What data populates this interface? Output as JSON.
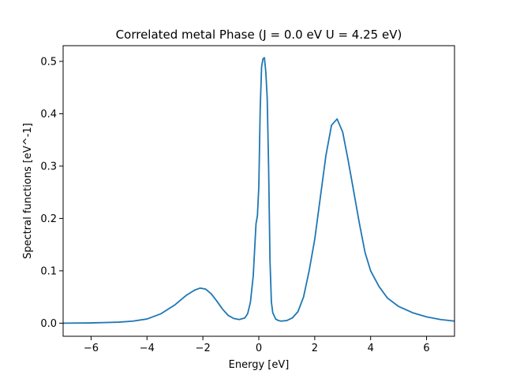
{
  "chart_data": {
    "type": "line",
    "title": "Correlated metal Phase (J = 0.0 eV U = 4.25 eV)",
    "xlabel": "Energy [eV]",
    "ylabel": "Spectral functions [eV^-1]",
    "xlim": [
      -7,
      7
    ],
    "ylim": [
      -0.025,
      0.53
    ],
    "xticks": [
      -6,
      -4,
      -2,
      0,
      2,
      4,
      6
    ],
    "xtick_labels": [
      "−6",
      "−4",
      "−2",
      "0",
      "2",
      "4",
      "6"
    ],
    "yticks": [
      0.0,
      0.1,
      0.2,
      0.3,
      0.4,
      0.5
    ],
    "ytick_labels": [
      "0.0",
      "0.1",
      "0.2",
      "0.3",
      "0.4",
      "0.5"
    ],
    "grid": false,
    "series": [
      {
        "color": "#1f77b4",
        "x": [
          -7.0,
          -6.0,
          -5.0,
          -4.5,
          -4.0,
          -3.5,
          -3.0,
          -2.6,
          -2.3,
          -2.1,
          -1.9,
          -1.7,
          -1.5,
          -1.3,
          -1.1,
          -0.9,
          -0.7,
          -0.5,
          -0.4,
          -0.3,
          -0.2,
          -0.1,
          -0.05,
          0.0,
          0.05,
          0.1,
          0.15,
          0.2,
          0.25,
          0.3,
          0.35,
          0.4,
          0.45,
          0.5,
          0.6,
          0.7,
          0.8,
          1.0,
          1.2,
          1.4,
          1.6,
          1.8,
          2.0,
          2.2,
          2.4,
          2.6,
          2.8,
          3.0,
          3.2,
          3.4,
          3.6,
          3.8,
          4.0,
          4.3,
          4.6,
          5.0,
          5.5,
          6.0,
          6.5,
          7.0
        ],
        "y": [
          0.0,
          0.0005,
          0.002,
          0.004,
          0.008,
          0.018,
          0.035,
          0.053,
          0.063,
          0.067,
          0.065,
          0.056,
          0.042,
          0.027,
          0.015,
          0.009,
          0.007,
          0.01,
          0.018,
          0.04,
          0.09,
          0.19,
          0.205,
          0.26,
          0.41,
          0.49,
          0.505,
          0.507,
          0.48,
          0.43,
          0.3,
          0.12,
          0.04,
          0.02,
          0.008,
          0.005,
          0.004,
          0.005,
          0.01,
          0.022,
          0.05,
          0.1,
          0.16,
          0.24,
          0.32,
          0.378,
          0.39,
          0.365,
          0.31,
          0.25,
          0.19,
          0.135,
          0.1,
          0.07,
          0.048,
          0.032,
          0.02,
          0.012,
          0.007,
          0.004
        ]
      }
    ]
  }
}
